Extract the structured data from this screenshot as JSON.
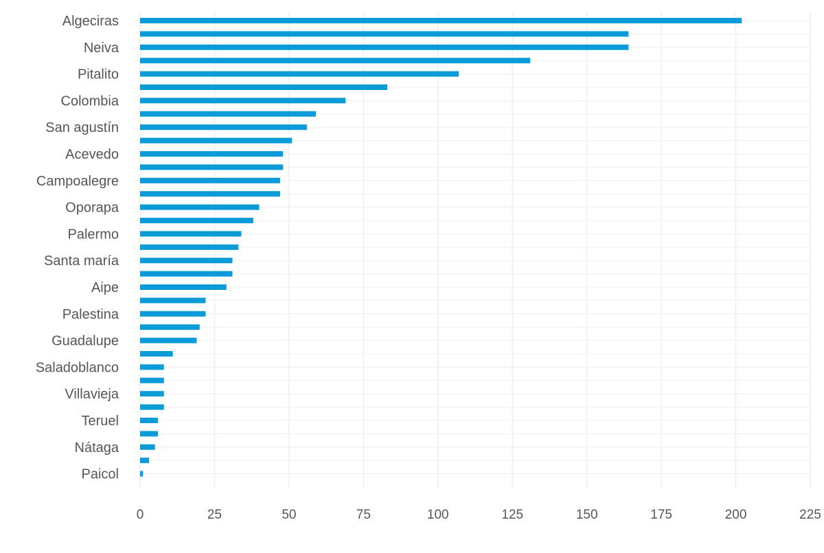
{
  "colors": {
    "bar": "#0b9bd8",
    "grid": "#eeeeee",
    "label": "#555555"
  },
  "chart_data": {
    "type": "bar",
    "orientation": "horizontal",
    "title": "",
    "xlabel": "",
    "ylabel": "",
    "xlim": [
      0,
      225
    ],
    "x_ticks": [
      0,
      25,
      50,
      75,
      100,
      125,
      150,
      175,
      200,
      225
    ],
    "grid": true,
    "categories": [
      "Algeciras",
      "",
      "Neiva",
      "",
      "Pitalito",
      "",
      "Colombia",
      "",
      "San agustín",
      "",
      "Acevedo",
      "",
      "Campoalegre",
      "",
      "Oporapa",
      "",
      "Palermo",
      "",
      "Santa maría",
      "",
      "Aipe",
      "",
      "Palestina",
      "",
      "Guadalupe",
      "",
      "Saladoblanco",
      "",
      "Villavieja",
      "",
      "Teruel",
      "",
      "Nátaga",
      "",
      "Paicol"
    ],
    "values": [
      202,
      164,
      164,
      131,
      107,
      83,
      69,
      59,
      56,
      51,
      48,
      48,
      47,
      47,
      40,
      38,
      34,
      33,
      31,
      31,
      29,
      22,
      22,
      20,
      19,
      11,
      8,
      8,
      8,
      8,
      6,
      6,
      5,
      3,
      1
    ]
  }
}
